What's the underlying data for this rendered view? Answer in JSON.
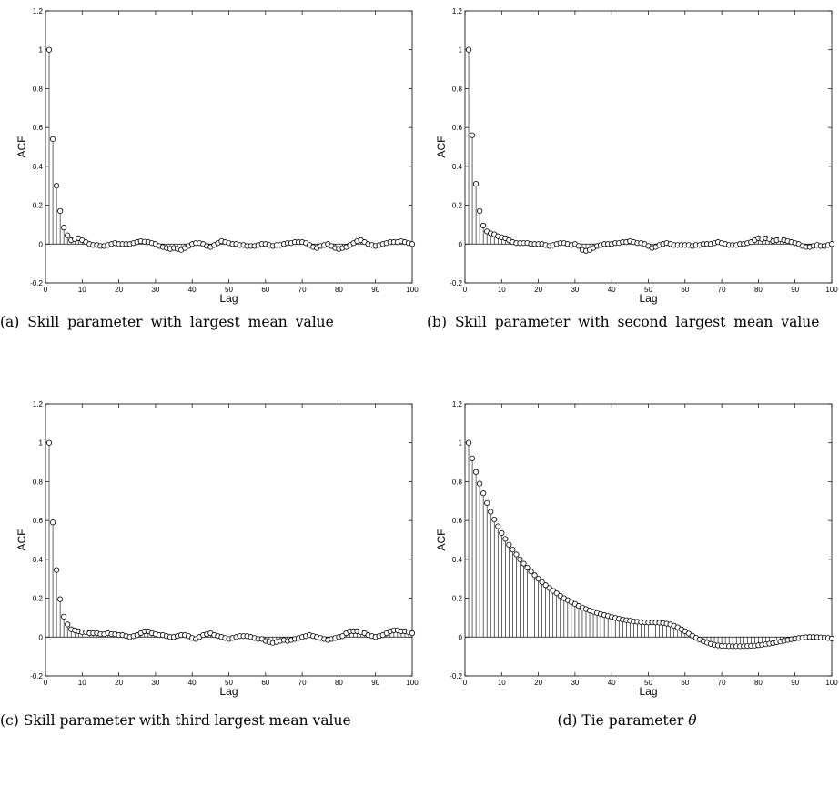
{
  "panels": [
    {
      "id": "a",
      "caption": "(a) Skill parameter with largest mean value",
      "chart_data": {
        "type": "stem",
        "xlabel": "Lag",
        "ylabel": "ACF",
        "xlim": [
          0,
          100
        ],
        "ylim": [
          -0.2,
          1.2
        ],
        "xticks": [
          0,
          10,
          20,
          30,
          40,
          50,
          60,
          70,
          80,
          90,
          100
        ],
        "yticks": [
          -0.2,
          0,
          0.2,
          0.4,
          0.6,
          0.8,
          1,
          1.2
        ],
        "x_start": 1,
        "values": [
          1.0,
          0.54,
          0.3,
          0.17,
          0.085,
          0.045,
          0.02,
          0.025,
          0.03,
          0.02,
          0.01,
          0.0,
          -0.005,
          -0.005,
          -0.01,
          -0.01,
          -0.005,
          0.0,
          0.005,
          0.0,
          0.0,
          0.0,
          0.0,
          0.005,
          0.01,
          0.015,
          0.012,
          0.01,
          0.005,
          0.0,
          -0.01,
          -0.015,
          -0.02,
          -0.025,
          -0.02,
          -0.025,
          -0.03,
          -0.02,
          -0.01,
          0.0,
          0.005,
          0.005,
          0.0,
          -0.01,
          -0.015,
          -0.005,
          0.005,
          0.015,
          0.01,
          0.005,
          0.0,
          0.0,
          -0.005,
          -0.005,
          -0.01,
          -0.01,
          -0.01,
          -0.005,
          0.0,
          0.0,
          -0.005,
          -0.01,
          -0.005,
          -0.005,
          0.0,
          0.005,
          0.005,
          0.01,
          0.01,
          0.01,
          0.005,
          -0.005,
          -0.015,
          -0.02,
          -0.01,
          -0.005,
          0.0,
          -0.01,
          -0.02,
          -0.025,
          -0.02,
          -0.015,
          -0.005,
          0.005,
          0.015,
          0.02,
          0.01,
          0.0,
          -0.005,
          -0.01,
          -0.005,
          0.0,
          0.005,
          0.01,
          0.01,
          0.01,
          0.015,
          0.01,
          0.005,
          0.0
        ]
      }
    },
    {
      "id": "b",
      "caption": "(b) Skill parameter with second largest mean value",
      "chart_data": {
        "type": "stem",
        "xlabel": "Lag",
        "ylabel": "ACF",
        "xlim": [
          0,
          100
        ],
        "ylim": [
          -0.2,
          1.2
        ],
        "xticks": [
          0,
          10,
          20,
          30,
          40,
          50,
          60,
          70,
          80,
          90,
          100
        ],
        "yticks": [
          -0.2,
          0,
          0.2,
          0.4,
          0.6,
          0.8,
          1,
          1.2
        ],
        "x_start": 1,
        "values": [
          1.0,
          0.56,
          0.31,
          0.17,
          0.095,
          0.065,
          0.055,
          0.05,
          0.04,
          0.035,
          0.03,
          0.02,
          0.01,
          0.005,
          0.005,
          0.005,
          0.005,
          0.0,
          0.0,
          0.0,
          0.0,
          -0.005,
          -0.01,
          -0.005,
          0.0,
          0.005,
          0.005,
          0.0,
          -0.005,
          0.0,
          -0.01,
          -0.03,
          -0.035,
          -0.03,
          -0.02,
          -0.01,
          -0.005,
          0.0,
          0.0,
          0.0,
          0.005,
          0.005,
          0.01,
          0.01,
          0.015,
          0.01,
          0.005,
          0.005,
          0.0,
          -0.01,
          -0.02,
          -0.015,
          -0.005,
          0.0,
          0.005,
          0.0,
          -0.005,
          -0.005,
          -0.005,
          -0.005,
          -0.005,
          -0.01,
          -0.005,
          -0.005,
          0.0,
          0.0,
          0.0,
          0.005,
          0.01,
          0.005,
          0.0,
          -0.005,
          -0.005,
          -0.005,
          0.0,
          0.0,
          0.005,
          0.01,
          0.02,
          0.03,
          0.025,
          0.03,
          0.025,
          0.015,
          0.02,
          0.025,
          0.02,
          0.015,
          0.01,
          0.005,
          0.0,
          -0.01,
          -0.015,
          -0.015,
          -0.01,
          -0.005,
          -0.01,
          -0.01,
          -0.005,
          0.0
        ]
      }
    },
    {
      "id": "c",
      "caption": "(c) Skill parameter with third largest mean value",
      "chart_data": {
        "type": "stem",
        "xlabel": "Lag",
        "ylabel": "ACF",
        "xlim": [
          0,
          100
        ],
        "ylim": [
          -0.2,
          1.2
        ],
        "xticks": [
          0,
          10,
          20,
          30,
          40,
          50,
          60,
          70,
          80,
          90,
          100
        ],
        "yticks": [
          -0.2,
          0,
          0.2,
          0.4,
          0.6,
          0.8,
          1,
          1.2
        ],
        "x_start": 1,
        "values": [
          1.0,
          0.59,
          0.345,
          0.195,
          0.105,
          0.065,
          0.04,
          0.035,
          0.03,
          0.025,
          0.025,
          0.02,
          0.02,
          0.02,
          0.015,
          0.015,
          0.02,
          0.015,
          0.015,
          0.01,
          0.01,
          0.005,
          0.0,
          0.005,
          0.01,
          0.02,
          0.03,
          0.03,
          0.02,
          0.015,
          0.01,
          0.01,
          0.005,
          0.0,
          0.0,
          0.005,
          0.01,
          0.01,
          0.005,
          -0.005,
          -0.01,
          0.0,
          0.01,
          0.015,
          0.02,
          0.01,
          0.005,
          0.0,
          -0.005,
          -0.01,
          -0.005,
          0.0,
          0.005,
          0.005,
          0.005,
          0.0,
          -0.005,
          -0.01,
          -0.01,
          -0.02,
          -0.025,
          -0.03,
          -0.025,
          -0.02,
          -0.015,
          -0.02,
          -0.015,
          -0.01,
          -0.005,
          0.0,
          0.005,
          0.01,
          0.005,
          0.0,
          -0.005,
          -0.01,
          -0.015,
          -0.01,
          -0.005,
          0.0,
          0.005,
          0.02,
          0.03,
          0.03,
          0.03,
          0.025,
          0.02,
          0.01,
          0.005,
          0.0,
          0.005,
          0.01,
          0.02,
          0.03,
          0.035,
          0.035,
          0.03,
          0.03,
          0.025,
          0.02
        ]
      }
    },
    {
      "id": "d",
      "caption": "(d) Tie parameter",
      "caption_symbol": "θ",
      "chart_data": {
        "type": "stem",
        "xlabel": "Lag",
        "ylabel": "ACF",
        "xlim": [
          0,
          100
        ],
        "ylim": [
          -0.2,
          1.2
        ],
        "xticks": [
          0,
          10,
          20,
          30,
          40,
          50,
          60,
          70,
          80,
          90,
          100
        ],
        "yticks": [
          -0.2,
          0,
          0.2,
          0.4,
          0.6,
          0.8,
          1,
          1.2
        ],
        "x_start": 1,
        "values": [
          1.0,
          0.92,
          0.85,
          0.79,
          0.74,
          0.69,
          0.645,
          0.605,
          0.57,
          0.535,
          0.505,
          0.475,
          0.45,
          0.425,
          0.4,
          0.378,
          0.357,
          0.337,
          0.318,
          0.3,
          0.283,
          0.267,
          0.252,
          0.238,
          0.225,
          0.212,
          0.2,
          0.19,
          0.18,
          0.17,
          0.16,
          0.152,
          0.144,
          0.137,
          0.13,
          0.124,
          0.118,
          0.113,
          0.108,
          0.103,
          0.098,
          0.094,
          0.09,
          0.087,
          0.084,
          0.081,
          0.079,
          0.077,
          0.076,
          0.075,
          0.075,
          0.075,
          0.074,
          0.072,
          0.069,
          0.065,
          0.058,
          0.05,
          0.04,
          0.03,
          0.018,
          0.007,
          -0.004,
          -0.013,
          -0.022,
          -0.029,
          -0.035,
          -0.04,
          -0.043,
          -0.045,
          -0.046,
          -0.047,
          -0.047,
          -0.047,
          -0.047,
          -0.047,
          -0.046,
          -0.045,
          -0.044,
          -0.042,
          -0.04,
          -0.037,
          -0.034,
          -0.031,
          -0.027,
          -0.023,
          -0.019,
          -0.015,
          -0.011,
          -0.008,
          -0.005,
          -0.003,
          -0.001,
          0.0,
          0.0,
          -0.001,
          -0.002,
          -0.003,
          -0.005,
          -0.008
        ]
      }
    }
  ]
}
